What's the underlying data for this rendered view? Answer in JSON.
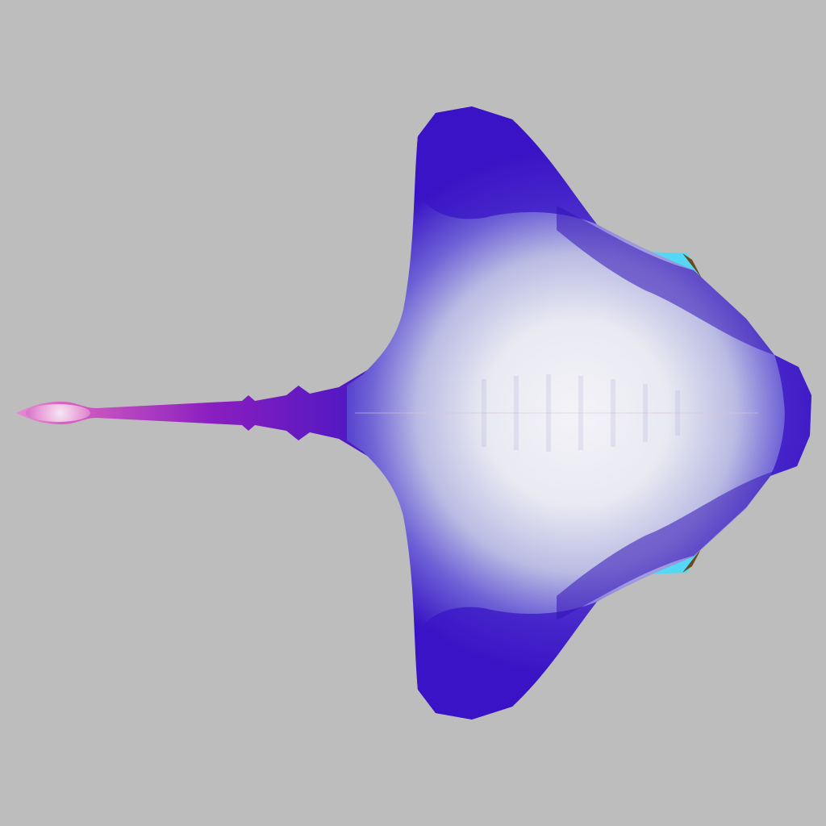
{
  "scene": {
    "subject": "stingray-3d-render",
    "view": "top-down",
    "colors": {
      "background": "#bdbdbd",
      "body_edge": "#3b0fc8",
      "body_mid": "#7f86d6",
      "body_center": "#f2f1f7",
      "tail_base": "#5a14b8",
      "tail_tip": "#e06fc8",
      "eye_cyan": "#55d8f5",
      "eye_brown": "#6b4a1c"
    }
  }
}
